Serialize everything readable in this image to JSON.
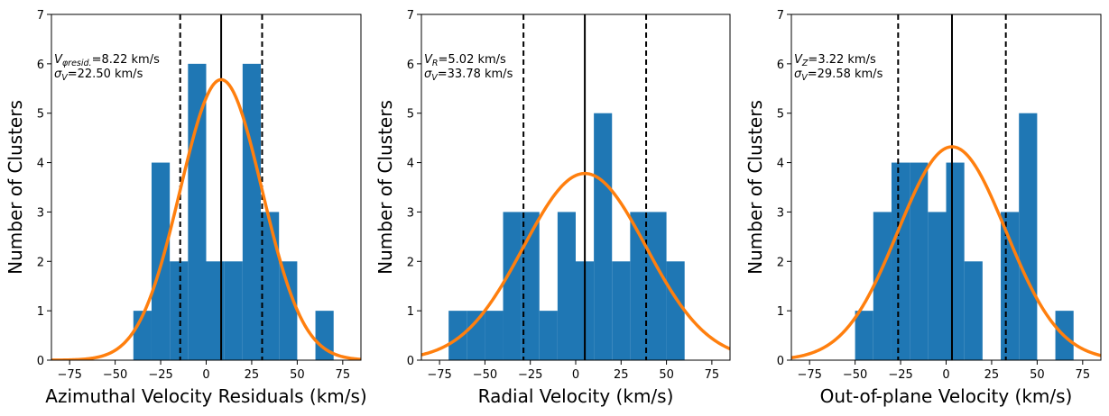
{
  "chart_data": [
    {
      "type": "bar",
      "title": "",
      "xlabel": "Azimuthal Velocity Residuals (km/s)",
      "ylabel": "Number of Clusters",
      "xlim": [
        -85,
        85
      ],
      "ylim": [
        0,
        7
      ],
      "xticks": [
        -75,
        -50,
        -25,
        0,
        25,
        50,
        75
      ],
      "yticks": [
        0,
        1,
        2,
        3,
        4,
        5,
        6,
        7
      ],
      "bin_width": 10,
      "bins": [
        {
          "start": -40,
          "count": 1
        },
        {
          "start": -30,
          "count": 4
        },
        {
          "start": -20,
          "count": 2
        },
        {
          "start": -10,
          "count": 6
        },
        {
          "start": 0,
          "count": 2
        },
        {
          "start": 10,
          "count": 2
        },
        {
          "start": 20,
          "count": 6
        },
        {
          "start": 30,
          "count": 3
        },
        {
          "start": 40,
          "count": 2
        },
        {
          "start": 60,
          "count": 1
        }
      ],
      "gaussian": {
        "mean": 8.22,
        "sigma": 22.5,
        "peak": 5.68
      },
      "mean_line": 8.22,
      "sigma_lines": [
        -14.28,
        30.72
      ],
      "annotation": {
        "line1_sym": "V",
        "line1_sub": "φresid.",
        "line1_val": "=8.22 km/s",
        "line2_sym": "σ",
        "line2_sub": "V",
        "line2_val": "=22.50 km/s"
      }
    },
    {
      "type": "bar",
      "title": "",
      "xlabel": "Radial Velocity (km/s)",
      "ylabel": "Number of Clusters",
      "xlim": [
        -85,
        85
      ],
      "ylim": [
        0,
        7
      ],
      "xticks": [
        -75,
        -50,
        -25,
        0,
        25,
        50,
        75
      ],
      "yticks": [
        0,
        1,
        2,
        3,
        4,
        5,
        6,
        7
      ],
      "bin_width": 10,
      "bins": [
        {
          "start": -70,
          "count": 1
        },
        {
          "start": -60,
          "count": 1
        },
        {
          "start": -50,
          "count": 1
        },
        {
          "start": -40,
          "count": 3
        },
        {
          "start": -30,
          "count": 3
        },
        {
          "start": -20,
          "count": 1
        },
        {
          "start": -10,
          "count": 3
        },
        {
          "start": 0,
          "count": 2
        },
        {
          "start": 10,
          "count": 5
        },
        {
          "start": 20,
          "count": 2
        },
        {
          "start": 30,
          "count": 3
        },
        {
          "start": 40,
          "count": 3
        },
        {
          "start": 50,
          "count": 2
        }
      ],
      "gaussian": {
        "mean": 5.02,
        "sigma": 33.78,
        "peak": 3.78
      },
      "mean_line": 5.02,
      "sigma_lines": [
        -28.76,
        38.8
      ],
      "annotation": {
        "line1_sym": "V",
        "line1_sub": "R",
        "line1_val": "=5.02 km/s",
        "line2_sym": "σ",
        "line2_sub": "V",
        "line2_val": "=33.78 km/s"
      }
    },
    {
      "type": "bar",
      "title": "",
      "xlabel": "Out-of-plane Velocity (km/s)",
      "ylabel": "Number of Clusters",
      "xlim": [
        -85,
        85
      ],
      "ylim": [
        0,
        7
      ],
      "xticks": [
        -75,
        -50,
        -25,
        0,
        25,
        50,
        75
      ],
      "yticks": [
        0,
        1,
        2,
        3,
        4,
        5,
        6,
        7
      ],
      "bin_width": 10,
      "bins": [
        {
          "start": -50,
          "count": 1
        },
        {
          "start": -40,
          "count": 3
        },
        {
          "start": -30,
          "count": 4
        },
        {
          "start": -20,
          "count": 4
        },
        {
          "start": -10,
          "count": 3
        },
        {
          "start": 0,
          "count": 4
        },
        {
          "start": 10,
          "count": 2
        },
        {
          "start": 30,
          "count": 3
        },
        {
          "start": 40,
          "count": 5
        },
        {
          "start": 60,
          "count": 1
        }
      ],
      "gaussian": {
        "mean": 3.22,
        "sigma": 29.58,
        "peak": 4.32
      },
      "mean_line": 3.22,
      "sigma_lines": [
        -26.36,
        32.8
      ],
      "annotation": {
        "line1_sym": "V",
        "line1_sub": "Z",
        "line1_val": "=3.22 km/s",
        "line2_sym": "σ",
        "line2_sub": "V",
        "line2_val": "=29.58 km/s"
      }
    }
  ],
  "colors": {
    "bar": "#1f77b4",
    "curve": "#ff7f0e",
    "line": "#000000"
  }
}
